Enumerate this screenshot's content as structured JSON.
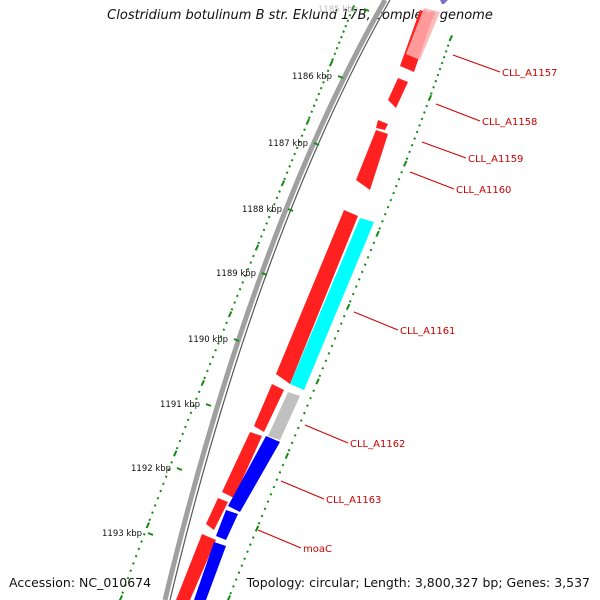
{
  "title": "Clostridium botulinum B str. Eklund 17B, complete genome",
  "footer": {
    "accession": "Accession: NC_010674",
    "summary": "Topology: circular; Length: 3,800,327 bp; Genes: 3,537"
  },
  "ticks": [
    {
      "label": "1185 kbp"
    },
    {
      "label": "1186 kbp"
    },
    {
      "label": "1187 kbp"
    },
    {
      "label": "1188 kbp"
    },
    {
      "label": "1189 kbp"
    },
    {
      "label": "1190 kbp"
    },
    {
      "label": "1191 kbp"
    },
    {
      "label": "1192 kbp"
    },
    {
      "label": "1193 kbp"
    }
  ],
  "genes": [
    {
      "label": "CLL_A1157"
    },
    {
      "label": "CLL_A1158"
    },
    {
      "label": "CLL_A1159"
    },
    {
      "label": "CLL_A1160"
    },
    {
      "label": "CLL_A1161"
    },
    {
      "label": "CLL_A1162"
    },
    {
      "label": "CLL_A1163"
    },
    {
      "label": "moaC"
    }
  ],
  "colors": {
    "backbone": "#808080",
    "forward_gene": "#ff0000",
    "cog_cyan": "#00ffff",
    "cog_gray": "#c0c0c0",
    "cog_blue": "#0000ff",
    "cog_purple": "#7b6fd0",
    "tick_marks": "#138a13",
    "gene_label": "#cc0000"
  }
}
